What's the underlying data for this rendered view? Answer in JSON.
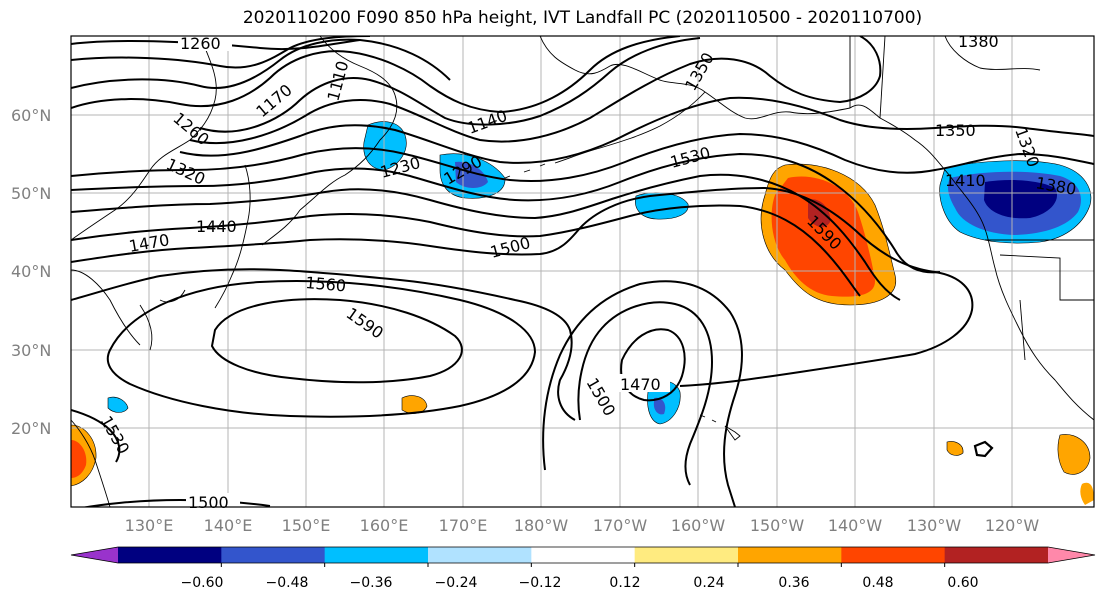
{
  "title": "2020110200 F090 850 hPa height, IVT Landfall PC (2020110500 - 2020110700)",
  "lon_labels": [
    "130°E",
    "140°E",
    "150°E",
    "160°E",
    "170°E",
    "180°W",
    "170°W",
    "160°W",
    "150°W",
    "140°W",
    "130°W",
    "120°W"
  ],
  "lat_labels": [
    "60°N",
    "50°N",
    "40°N",
    "30°N",
    "20°N"
  ],
  "contour_labels": [
    "1260",
    "1260",
    "1170",
    "1110",
    "1140",
    "1350",
    "1380",
    "1350",
    "1320",
    "1320",
    "1230",
    "1290",
    "1530",
    "1410",
    "1380",
    "1440",
    "1470",
    "1500",
    "1590",
    "1560",
    "1590",
    "1470",
    "1500",
    "1530",
    "1500"
  ],
  "colorbar": {
    "ticks": [
      "−0.60",
      "−0.48",
      "−0.36",
      "−0.24",
      "−0.12",
      "0.12",
      "0.24",
      "0.36",
      "0.48",
      "0.60"
    ],
    "colors": [
      "#9933cc",
      "#000080",
      "#3355cc",
      "#00bfff",
      "#b0e2ff",
      "#ffffff",
      "#ffeb80",
      "#ffa500",
      "#ff4500",
      "#b22222",
      "#ff88aa"
    ]
  }
}
